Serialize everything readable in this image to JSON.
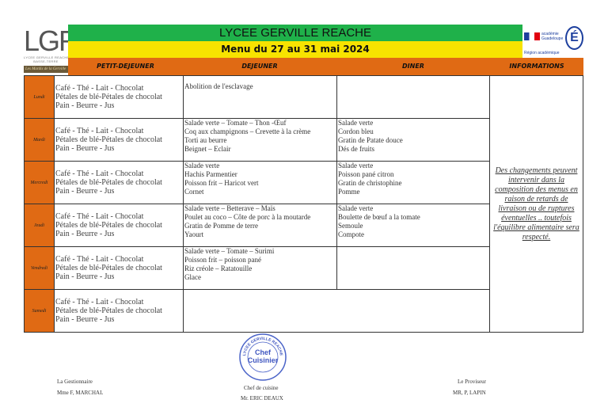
{
  "header": {
    "logo_text": "LGR",
    "logo_subtitle": "LYCEE GERVILLE REACHE",
    "logo_city": "BASSE-TERRE",
    "logo_strip": "Les Mardis de la Gerville",
    "school_name": "LYCEE GERVILLE REACHE",
    "menu_title": "Menu du 27 au 31 mai 2024",
    "academy_text": "académie Guadeloupe",
    "academy_region": "Région académique",
    "academy_logo_letter": "É"
  },
  "columns": [
    "PETIT-DEJEUNER",
    "DEJEUNER",
    "DINER",
    "INFORMATIONS"
  ],
  "days": [
    {
      "name": "Lundi",
      "petit_dejeuner": [
        "Café - Thé - Lait - Chocolat",
        "Pétales de blé-Pétales de chocolat",
        "Pain - Beurre - Jus"
      ],
      "dejeuner": [
        "Abolition de l'esclavage"
      ],
      "diner": []
    },
    {
      "name": "Mardi",
      "petit_dejeuner": [
        "Café - Thé - Lait - Chocolat",
        "Pétales de blé-Pétales de chocolat",
        "Pain - Beurre - Jus"
      ],
      "dejeuner": [
        "Salade verte – Tomate – Thon -Œuf",
        "Coq aux champignons – Crevette à la crème",
        "Torti au beurre",
        "Beignet – Eclair"
      ],
      "diner": [
        "Salade verte",
        "Cordon bleu",
        "Gratin de Patate douce",
        "Dés de fruits"
      ]
    },
    {
      "name": "Mercredi",
      "petit_dejeuner": [
        "Café - Thé - Lait - Chocolat",
        "Pétales de blé-Pétales de chocolat",
        "Pain - Beurre - Jus"
      ],
      "dejeuner": [
        "Salade verte",
        "Hachis Parmentier",
        "Poisson frit – Haricot vert",
        "Cornet"
      ],
      "diner": [
        "Salade verte",
        "Poisson pané citron",
        "Gratin de christophine",
        "Pomme"
      ]
    },
    {
      "name": "Jeudi",
      "petit_dejeuner": [
        "Café - Thé - Lait - Chocolat",
        "Pétales de blé-Pétales de chocolat",
        "Pain - Beurre - Jus"
      ],
      "dejeuner": [
        "Salade verte – Betterave – Maïs",
        "Poulet au coco – Côte de porc à la moutarde",
        "Gratin de Pomme de terre",
        "Yaourt"
      ],
      "diner": [
        "Salade verte",
        "Boulette de bœuf a la tomate",
        "Semoule",
        "Compote"
      ]
    },
    {
      "name": "Vendredi",
      "petit_dejeuner": [
        "Café - Thé - Lait - Chocolat",
        "Pétales de blé-Pétales de chocolat",
        "Pain - Beurre - Jus"
      ],
      "dejeuner": [
        "Salade verte – Tomate – Surimi",
        "Poisson frit – poisson pané",
        "Riz créole – Ratatouille",
        "Glace"
      ],
      "diner": []
    },
    {
      "name": "Samedi",
      "petit_dejeuner": [
        "Café - Thé - Lait - Chocolat",
        "Pétales de blé-Pétales de chocolat",
        "Pain - Beurre - Jus"
      ],
      "dejeuner": [],
      "diner": []
    }
  ],
  "informations": "Des changements peuvent intervenir dans la composition des menus en raison de retards de livraison ou de ruptures éventuelles .. toutefois l'équilibre alimentaire sera respecté.",
  "signatures": {
    "gestionnaire_title": "La Gestionnaire",
    "gestionnaire_name": "Mme F, MARCHAL",
    "chef_title": "Chef de cuisine",
    "chef_name": "Mr. ERIC DEAUX",
    "proviseur_title": "Le Proviseur",
    "proviseur_name": "MR, P, LAPIN"
  },
  "stamp": {
    "ring": "LYCEE GERVILLE REACHE",
    "line1": "Chef",
    "line2": "Cuisinier"
  },
  "colors": {
    "green": "#1fb14a",
    "yellow": "#f7e300",
    "orange": "#e06a14"
  }
}
